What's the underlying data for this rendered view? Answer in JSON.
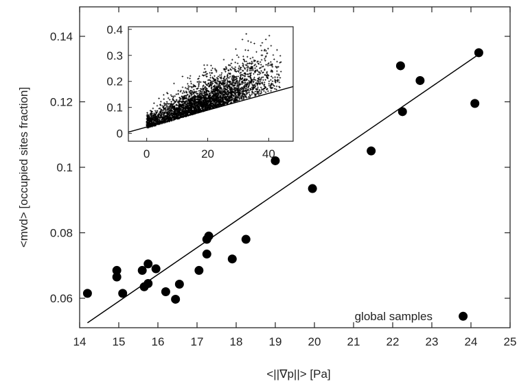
{
  "chart_data": [
    {
      "type": "scatter",
      "title": "",
      "xlabel": "<||∇p||>  [Pa]",
      "ylabel": "<mvd> [occupied sites fraction]",
      "xlim": [
        14,
        25
      ],
      "ylim": [
        0.051,
        0.149
      ],
      "xticks": [
        "14",
        "15",
        "16",
        "17",
        "18",
        "19",
        "20",
        "21",
        "22",
        "23",
        "24",
        "25"
      ],
      "yticks": [
        "0.06",
        "0.08",
        "0.1",
        "0.12",
        "0.14"
      ],
      "ytick_values": [
        0.06,
        0.08,
        0.1,
        0.12,
        0.14
      ],
      "annotation": "global samples",
      "grid": false,
      "series": [
        {
          "marker": "circle",
          "color": "#000000",
          "points": [
            [
              14.2,
              0.0615
            ],
            [
              14.95,
              0.0685
            ],
            [
              14.95,
              0.0665
            ],
            [
              15.1,
              0.0615
            ],
            [
              15.6,
              0.0685
            ],
            [
              15.65,
              0.0635
            ],
            [
              15.75,
              0.0645
            ],
            [
              15.75,
              0.0705
            ],
            [
              15.95,
              0.069
            ],
            [
              16.2,
              0.062
            ],
            [
              16.45,
              0.0597
            ],
            [
              16.55,
              0.0643
            ],
            [
              17.05,
              0.0685
            ],
            [
              17.25,
              0.0735
            ],
            [
              17.25,
              0.078
            ],
            [
              17.3,
              0.079
            ],
            [
              17.9,
              0.072
            ],
            [
              18.25,
              0.078
            ],
            [
              19.0,
              0.102
            ],
            [
              19.95,
              0.0935
            ],
            [
              21.45,
              0.105
            ],
            [
              22.2,
              0.131
            ],
            [
              22.25,
              0.117
            ],
            [
              22.7,
              0.1265
            ],
            [
              23.8,
              0.0545
            ],
            [
              24.1,
              0.1195
            ],
            [
              24.2,
              0.135
            ]
          ]
        }
      ],
      "fit_line": {
        "x": [
          14.2,
          24.2
        ],
        "y": [
          0.0525,
          0.1345
        ],
        "color": "#000000"
      }
    },
    {
      "type": "scatter",
      "title": "",
      "xlabel": "",
      "ylabel": "",
      "xlim": [
        -6,
        48
      ],
      "ylim": [
        -0.03,
        0.41
      ],
      "xticks": [
        "0",
        "20",
        "40"
      ],
      "xtick_values": [
        0,
        20,
        40
      ],
      "yticks": [
        "0",
        "0.1",
        "0.2",
        "0.3",
        "0.4"
      ],
      "ytick_values": [
        0,
        0.1,
        0.2,
        0.3,
        0.4
      ],
      "grid": false,
      "cloud": {
        "count": 3500,
        "x_mean": 18,
        "x_sd": 11,
        "y_mean_at_0": 0.035,
        "y_slope": 0.0035,
        "y_sd": 0.06,
        "marker": "small-plus",
        "color": "#000000"
      },
      "fit_line": {
        "x": [
          -6,
          48
        ],
        "y": [
          0.005,
          0.18
        ],
        "color": "#000000"
      }
    }
  ]
}
